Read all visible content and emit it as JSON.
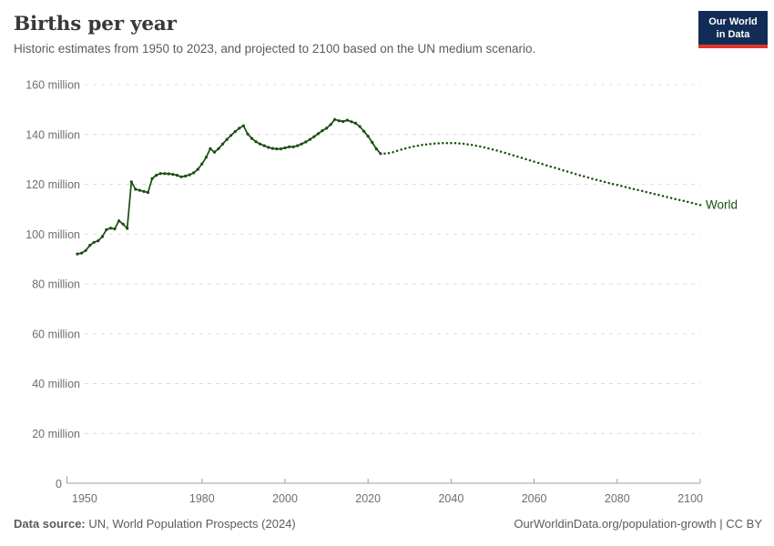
{
  "header": {
    "title": "Births per year",
    "subtitle": "Historic estimates from 1950 to 2023, and projected to 2100 based on the UN medium scenario.",
    "logo": {
      "line1": "Our World",
      "line2": "in Data",
      "bg_color": "#122d55",
      "accent_color": "#dc362a"
    }
  },
  "chart_data": {
    "type": "line",
    "title": "Births per year",
    "xlabel": "",
    "ylabel": "",
    "unit": "million",
    "xlim": [
      1950,
      2100
    ],
    "ylim": [
      0,
      160
    ],
    "grid": "horizontal-dashed",
    "legend_position": "end-of-line-label",
    "end_label": "World",
    "projection_start_year": 2023,
    "x_ticks": [
      1950,
      1980,
      2000,
      2020,
      2040,
      2060,
      2080,
      2100
    ],
    "y_ticks": [
      {
        "value": 0,
        "label": "0"
      },
      {
        "value": 20,
        "label": "20 million"
      },
      {
        "value": 40,
        "label": "40 million"
      },
      {
        "value": 60,
        "label": "60 million"
      },
      {
        "value": 80,
        "label": "80 million"
      },
      {
        "value": 100,
        "label": "100 million"
      },
      {
        "value": 120,
        "label": "120 million"
      },
      {
        "value": 140,
        "label": "140 million"
      },
      {
        "value": 160,
        "label": "160 million"
      }
    ],
    "series": [
      {
        "name": "World (historic estimates)",
        "style": "solid-with-markers",
        "color": "#1b4d11",
        "x_range": [
          1950,
          2023
        ],
        "values": [
          92.0,
          92.4,
          93.4,
          95.5,
          96.7,
          97.3,
          99.0,
          101.8,
          102.4,
          102.1,
          105.3,
          104.0,
          102.3,
          121.0,
          118.0,
          117.6,
          117.1,
          116.7,
          122.3,
          123.6,
          124.3,
          124.3,
          124.2,
          124.0,
          123.6,
          123.0,
          123.3,
          123.8,
          124.6,
          126.0,
          128.2,
          130.8,
          134.3,
          132.9,
          134.3,
          136.2,
          138.0,
          139.6,
          141.2,
          142.5,
          143.5,
          140.2,
          138.4,
          137.1,
          136.2,
          135.5,
          134.8,
          134.4,
          134.2,
          134.2,
          134.6,
          135.0,
          135.0,
          135.5,
          136.2,
          137.0,
          138.0,
          139.1,
          140.3,
          141.5,
          142.5,
          144.0,
          146.0,
          145.5,
          145.2,
          145.7,
          145.1,
          144.5,
          143.2,
          141.3,
          139.3,
          136.8,
          134.2,
          132.3
        ]
      },
      {
        "name": "World (UN medium scenario projection)",
        "style": "dotted",
        "color": "#1b4d11",
        "x_range": [
          2023,
          2100
        ],
        "values": [
          132.3,
          132.3,
          132.5,
          132.9,
          133.4,
          133.9,
          134.4,
          134.8,
          135.2,
          135.5,
          135.8,
          136.0,
          136.2,
          136.35,
          136.45,
          136.5,
          136.55,
          136.55,
          136.5,
          136.4,
          136.25,
          136.05,
          135.8,
          135.5,
          135.15,
          134.8,
          134.4,
          134.0,
          133.55,
          133.1,
          132.6,
          132.1,
          131.6,
          131.1,
          130.6,
          130.1,
          129.6,
          129.1,
          128.6,
          128.1,
          127.6,
          127.1,
          126.6,
          126.1,
          125.6,
          125.1,
          124.6,
          124.1,
          123.6,
          123.2,
          122.7,
          122.2,
          121.8,
          121.4,
          120.9,
          120.5,
          120.1,
          119.7,
          119.3,
          118.9,
          118.5,
          118.1,
          117.7,
          117.3,
          116.9,
          116.5,
          116.1,
          115.7,
          115.3,
          114.9,
          114.5,
          114.1,
          113.7,
          113.3,
          112.9,
          112.5,
          112.1,
          111.7
        ]
      }
    ]
  },
  "footer": {
    "source_label": "Data source:",
    "source_text": " UN, World Population Prospects (2024)",
    "right_text": "OurWorldinData.org/population-growth | CC BY"
  }
}
